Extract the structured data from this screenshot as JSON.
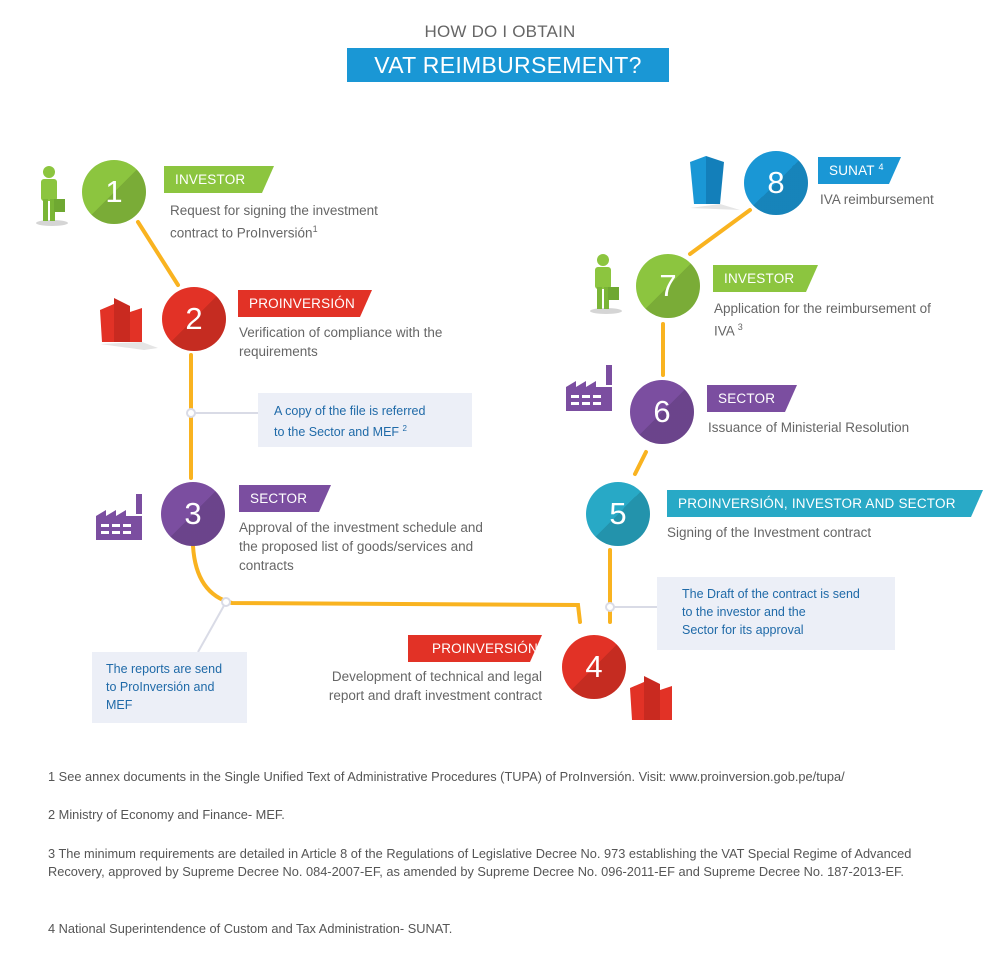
{
  "header": {
    "small": "HOW DO I OBTAIN",
    "main": "VAT REIMBURSEMENT?"
  },
  "steps": [
    {
      "num": "1",
      "actor": "INVESTOR",
      "desc_line1": "Request for signing the investment",
      "desc_line2": "contract to ProInversión",
      "ref": "1",
      "color": "#8cc53f",
      "icon": "person-icon"
    },
    {
      "num": "2",
      "actor": "PROINVERSIÓN",
      "desc_line1": "Verification of compliance with the",
      "desc_line2": "requirements",
      "ref": "",
      "color": "#e23226",
      "icon": "building-icon"
    },
    {
      "num": "3",
      "actor": "SECTOR",
      "desc_line1": "Approval of the investment schedule and",
      "desc_line2": "the proposed list of goods/services and",
      "desc_line3": "contracts",
      "ref": "",
      "color": "#7b4ea0",
      "icon": "factory-icon"
    },
    {
      "num": "4",
      "actor": "PROINVERSIÓN",
      "desc_line1": "Development of technical and legal",
      "desc_line2": "report and draft investment contract",
      "ref": "",
      "color": "#e23226",
      "icon": "building-icon"
    },
    {
      "num": "5",
      "actor": "PROINVERSIÓN, INVESTOR AND SECTOR",
      "desc_line1": "Signing of the Investment contract",
      "ref": "",
      "color": "#28a9c6",
      "icon": ""
    },
    {
      "num": "6",
      "actor": "SECTOR",
      "desc_line1": "Issuance of Ministerial Resolution",
      "ref": "",
      "color": "#7b4ea0",
      "icon": "factory-icon"
    },
    {
      "num": "7",
      "actor": "INVESTOR",
      "desc_line1": "Application for the reimbursement of",
      "desc_line2": "IVA",
      "ref": "3",
      "color": "#8cc53f",
      "icon": "person-icon"
    },
    {
      "num": "8",
      "actor": "SUNAT",
      "actor_ref": "4",
      "desc_line1": "IVA reimbursement",
      "ref": "",
      "color": "#1a97d5",
      "icon": "building-icon"
    }
  ],
  "notes": [
    {
      "line1": "A copy of the file is referred",
      "line2": "to the Sector and MEF",
      "ref": "2"
    },
    {
      "line1": "The reports are send",
      "line2": "to ProInversión and",
      "line3": "MEF"
    },
    {
      "line1": "The Draft of the contract is send",
      "line2": "to the investor and the",
      "line3": "Sector for its approval"
    }
  ],
  "footnotes": [
    "1 See annex documents in the Single Unified Text of Administrative Procedures (TUPA) of ProInversión. Visit: www.proinversion.gob.pe/tupa/",
    "2 Ministry of Economy and Finance- MEF.",
    "3 The minimum requirements are detailed in Article 8 of the Regulations of Legislative Decree No. 973 establishing the VAT Special Regime of Advanced Recovery, approved by Supreme Decree No. 084-2007-EF, as amended by Supreme Decree No. 096-2011-EF and Supreme Decree No. 187-2013-EF.",
    "4 National Superintendence of Custom and Tax Administration- SUNAT."
  ]
}
